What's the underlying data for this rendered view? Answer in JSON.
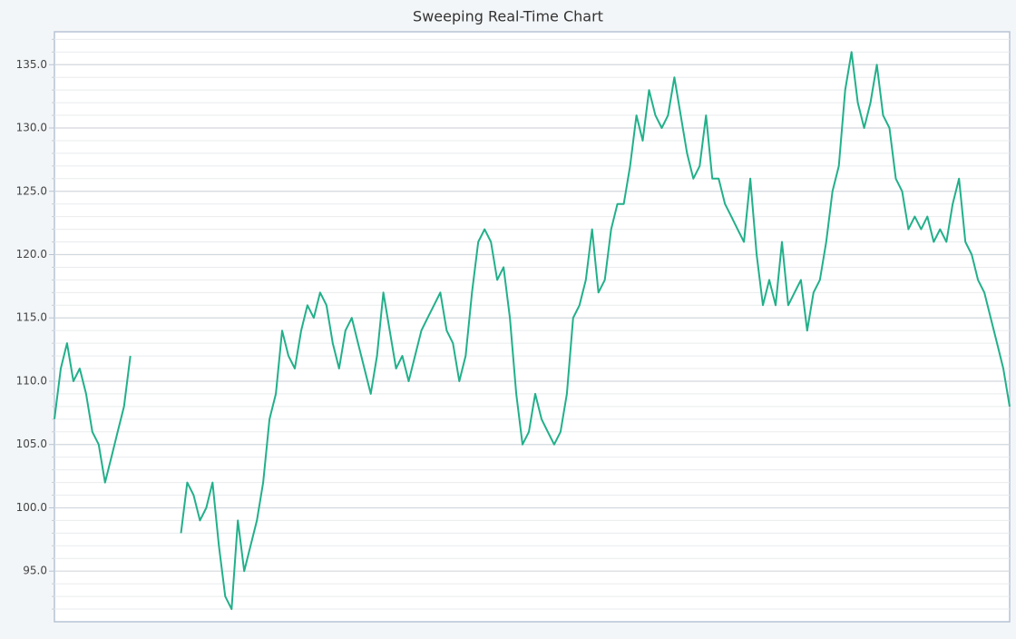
{
  "chart_data": {
    "type": "line",
    "title": "Sweeping Real-Time Chart",
    "color": "#22b08a",
    "grid": true,
    "ylim": [
      91,
      137.6
    ],
    "yticks": [
      {
        "value": 95,
        "label": "95.0"
      },
      {
        "value": 100,
        "label": "100.0"
      },
      {
        "value": 105,
        "label": "105.0"
      },
      {
        "value": 110,
        "label": "110.0"
      },
      {
        "value": 115,
        "label": "115.0"
      },
      {
        "value": 120,
        "label": "120.0"
      },
      {
        "value": 125,
        "label": "125.0"
      },
      {
        "value": 130,
        "label": "130.0"
      },
      {
        "value": 135,
        "label": "135.0"
      }
    ],
    "minor_yticks": [
      92,
      93,
      94,
      96,
      97,
      98,
      99,
      101,
      102,
      103,
      104,
      106,
      107,
      108,
      109,
      111,
      112,
      113,
      114,
      116,
      117,
      118,
      119,
      121,
      122,
      123,
      124,
      126,
      127,
      128,
      129,
      131,
      132,
      133,
      134,
      136,
      137
    ],
    "values": [
      107,
      111,
      113,
      110,
      111,
      109,
      106,
      105,
      102,
      104,
      106,
      108,
      112,
      null,
      null,
      null,
      null,
      null,
      null,
      null,
      98,
      102,
      101,
      99,
      100,
      102,
      97,
      93,
      92,
      99,
      95,
      97,
      99,
      102,
      107,
      109,
      114,
      112,
      111,
      114,
      116,
      115,
      117,
      116,
      113,
      111,
      114,
      115,
      113,
      111,
      109,
      112,
      117,
      114,
      111,
      112,
      110,
      112,
      114,
      115,
      116,
      117,
      114,
      113,
      110,
      112,
      117,
      121,
      122,
      121,
      118,
      119,
      115,
      109,
      105,
      106,
      109,
      107,
      106,
      105,
      106,
      109,
      115,
      116,
      118,
      122,
      117,
      118,
      122,
      124,
      124,
      127,
      131,
      129,
      133,
      131,
      130,
      131,
      134,
      131,
      128,
      126,
      127,
      131,
      126,
      126,
      124,
      123,
      122,
      121,
      126,
      120,
      116,
      118,
      116,
      121,
      116,
      117,
      118,
      114,
      117,
      118,
      121,
      125,
      127,
      133,
      136,
      132,
      130,
      132,
      135,
      131,
      130,
      126,
      125,
      122,
      123,
      122,
      123,
      121,
      122,
      121,
      124,
      126,
      121,
      120,
      118,
      117,
      115,
      113,
      111,
      108
    ]
  }
}
